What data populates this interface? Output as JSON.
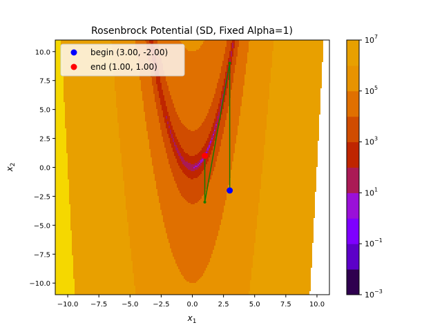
{
  "chart_data": {
    "type": "contour",
    "title": "Rosenbrock Potential (SD, Fixed Alpha=1)",
    "xlabel": "x",
    "xlabel_sub": "1",
    "ylabel": "x",
    "ylabel_sub": "2",
    "xlim": [
      -11,
      11
    ],
    "ylim": [
      -11,
      11
    ],
    "xticks": [
      -10.0,
      -7.5,
      -5.0,
      -2.5,
      0.0,
      2.5,
      5.0,
      7.5,
      10.0
    ],
    "xtick_labels": [
      "−10.0",
      "−7.5",
      "−5.0",
      "−2.5",
      "0.0",
      "2.5",
      "5.0",
      "7.5",
      "10.0"
    ],
    "yticks": [
      -10.0,
      -7.5,
      -5.0,
      -2.5,
      0.0,
      2.5,
      5.0,
      7.5,
      10.0
    ],
    "ytick_labels": [
      "−10.0",
      "−7.5",
      "−5.0",
      "−2.5",
      "0.0",
      "2.5",
      "5.0",
      "7.5",
      "10.0"
    ],
    "contour_function": "rosenbrock",
    "contour_scale": "log",
    "levels_log10": [
      -3,
      -2,
      -1,
      0,
      1,
      2,
      3,
      4,
      5,
      6,
      7
    ],
    "level_colors": [
      "#2f004f",
      "#5c00c8",
      "#7e00ff",
      "#9a10d8",
      "#aa1a55",
      "#bf2500",
      "#d04c00",
      "#e07000",
      "#e89300",
      "#e8a000",
      "#f5d800"
    ],
    "colorbar": {
      "ticks_log10": [
        -3,
        -1,
        1,
        3,
        5,
        7
      ],
      "tick_labels": [
        {
          "base": "10",
          "exp": "−3"
        },
        {
          "base": "10",
          "exp": "−1"
        },
        {
          "base": "10",
          "exp": "1"
        },
        {
          "base": "10",
          "exp": "3"
        },
        {
          "base": "10",
          "exp": "5"
        },
        {
          "base": "10",
          "exp": "7"
        }
      ]
    },
    "path": {
      "color": "#1a7a00",
      "points": [
        [
          3.0,
          -2.0
        ],
        [
          3.0,
          9.0
        ],
        [
          1.0,
          -3.0
        ],
        [
          1.0,
          1.0
        ]
      ]
    },
    "markers": [
      {
        "name": "begin (3.00, -2.00)",
        "x": 3.0,
        "y": -2.0,
        "color": "#0000ff"
      },
      {
        "name": "end (1.00, 1.00)",
        "x": 1.0,
        "y": 1.0,
        "color": "#ff0000"
      }
    ],
    "legend_location": "top-left",
    "grid": false
  }
}
